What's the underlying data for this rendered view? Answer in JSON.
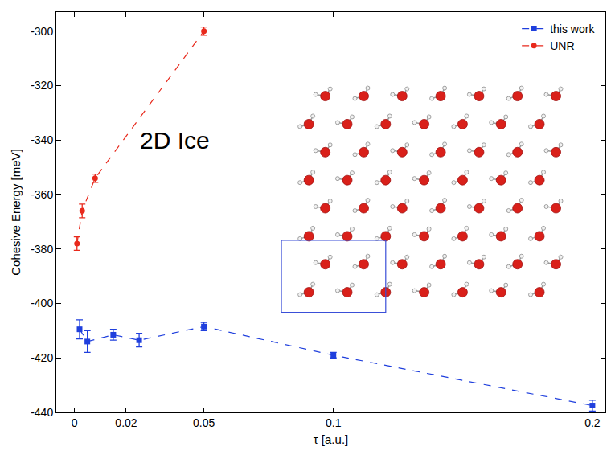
{
  "chart_data": {
    "type": "scatter",
    "x_label": "τ [a.u.]",
    "y_label": "Cohesive Energy [meV]",
    "annotation": "2D Ice",
    "xlim": [
      -0.007,
      0.205
    ],
    "ylim": [
      -440,
      -293
    ],
    "xticks": [
      0,
      0.02,
      0.05,
      0.1,
      0.2
    ],
    "yticks": [
      -440,
      -420,
      -400,
      -380,
      -360,
      -340,
      -320,
      -300
    ],
    "grid": false,
    "legend": "top right",
    "series": [
      {
        "name": "this work",
        "color": "#1f3fdd",
        "marker": "square",
        "line_style": "dashed",
        "x": [
          0.002,
          0.005,
          0.015,
          0.025,
          0.05,
          0.1,
          0.2
        ],
        "values": [
          -409.5,
          -414,
          -411.5,
          -413.5,
          -408.5,
          -419,
          -437.5
        ],
        "errors": [
          3.5,
          4,
          2,
          2.5,
          1.5,
          1,
          2
        ]
      },
      {
        "name": "UNR",
        "color": "#e8291c",
        "marker": "circle",
        "line_style": "dashed",
        "x": [
          0.001,
          0.003,
          0.008,
          0.05
        ],
        "values": [
          -378,
          -366,
          -354,
          -300
        ],
        "errors": [
          2.5,
          2.5,
          1.5,
          1.5
        ]
      }
    ]
  }
}
